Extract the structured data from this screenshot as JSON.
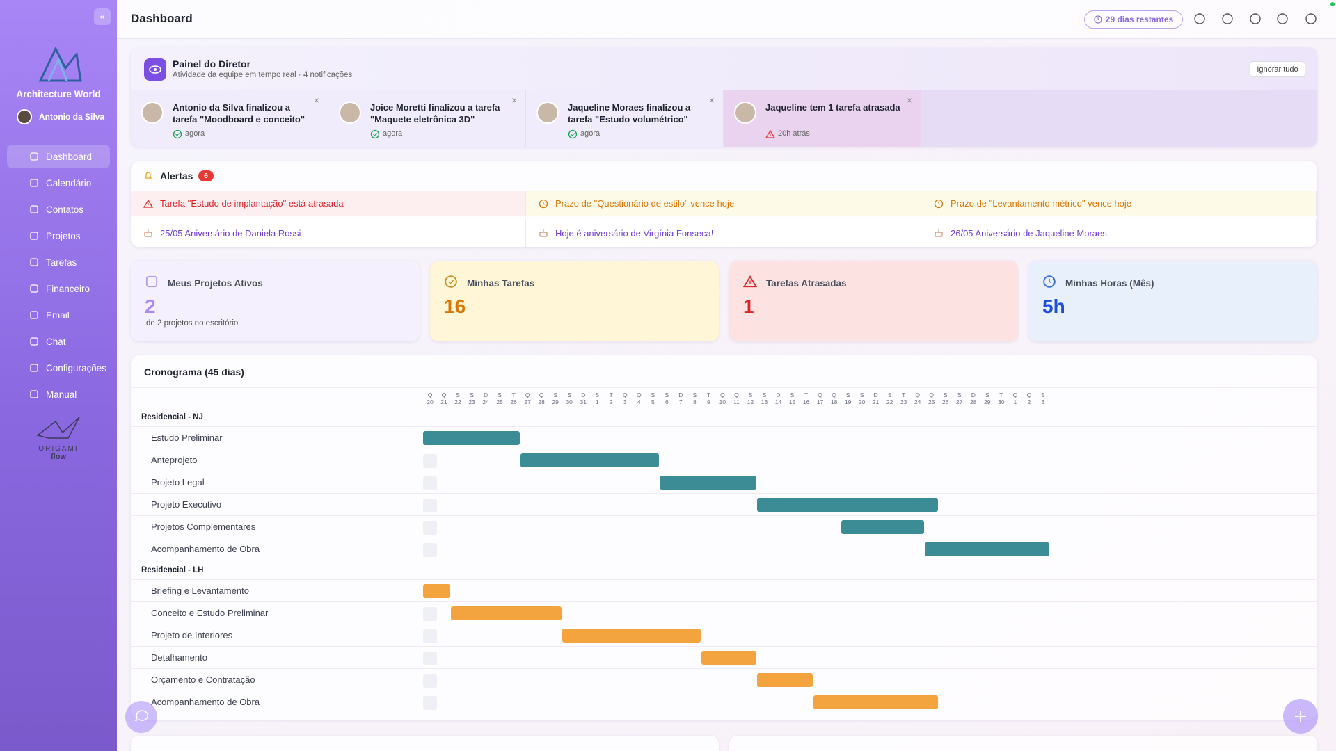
{
  "header": {
    "title": "Dashboard",
    "trial_badge": "29 dias restantes"
  },
  "sidebar": {
    "brand": "Architecture World",
    "user": "Antonio da Silva",
    "nav": [
      "Dashboard",
      "Calendário",
      "Contatos",
      "Projetos",
      "Tarefas",
      "Financeiro",
      "Email",
      "Chat",
      "Configurações",
      "Manual"
    ],
    "footer_logo": [
      "ORIGAMI",
      "flow"
    ]
  },
  "panel": {
    "title": "Painel do Diretor",
    "subtitle": "Atividade da equipe em tempo real · 4 notificações",
    "dismiss": "Ignorar tudo",
    "notifications": [
      {
        "text": "Antonio da Silva finalizou a tarefa \"Moodboard e conceito\"",
        "time": "agora"
      },
      {
        "text": "Joice Moretti finalizou a tarefa \"Maquete eletrônica 3D\"",
        "time": "agora"
      },
      {
        "text": "Jaqueline Moraes finalizou a tarefa \"Estudo volumétrico\"",
        "time": "agora"
      },
      {
        "text": "Jaqueline tem 1 tarefa atrasada",
        "time": "20h atrás"
      }
    ]
  },
  "alerts": {
    "title": "Alertas",
    "count": 6,
    "items": [
      "Tarefa \"Estudo de implantação\" está atrasada",
      "Prazo de \"Questionário de estilo\" vence hoje",
      "Prazo de \"Levantamento métrico\" vence hoje",
      "25/05 Aniversário de Daniela Rossi",
      "Hoje é aniversário de Virgínia Fonseca!",
      "26/05 Aniversário de Jaqueline Moraes"
    ]
  },
  "stats": [
    {
      "label": "Meus Projetos Ativos",
      "value": 2,
      "note": "de 2 projetos no escritório"
    },
    {
      "label": "Minhas Tarefas",
      "value": 16
    },
    {
      "label": "Tarefas Atrasadas",
      "value": 1
    },
    {
      "label": "Minhas Horas (Mês)",
      "value": "5h"
    }
  ],
  "gantt": {
    "title": "Cronograma (45 dias)",
    "weekdays": [
      "Q",
      "Q",
      "S",
      "S",
      "D",
      "S",
      "T",
      "Q",
      "Q",
      "S",
      "S",
      "D",
      "S",
      "T",
      "Q",
      "Q",
      "S",
      "S",
      "D",
      "S",
      "T",
      "Q",
      "Q",
      "S",
      "S",
      "D",
      "S",
      "T",
      "Q",
      "Q",
      "S",
      "S",
      "D",
      "S",
      "T",
      "Q",
      "Q",
      "S",
      "S",
      "D",
      "S",
      "T",
      "Q",
      "Q",
      "S"
    ],
    "dates": [
      20,
      21,
      22,
      23,
      24,
      25,
      26,
      27,
      28,
      29,
      30,
      31,
      1,
      2,
      3,
      4,
      5,
      6,
      7,
      8,
      9,
      10,
      11,
      12,
      13,
      14,
      15,
      16,
      17,
      18,
      19,
      20,
      21,
      22,
      23,
      24,
      25,
      26,
      27,
      28,
      29,
      30,
      1,
      2,
      3
    ],
    "groups": [
      {
        "name": "Residencial - NJ",
        "color": "#3b8c94",
        "tasks": [
          {
            "name": "Estudo Preliminar",
            "start": 0,
            "days": 7
          },
          {
            "name": "Anteprojeto",
            "start": 7,
            "days": 10
          },
          {
            "name": "Projeto Legal",
            "start": 17,
            "days": 7
          },
          {
            "name": "Projeto Executivo",
            "start": 24,
            "days": 13
          },
          {
            "name": "Projetos Complementares",
            "start": 30,
            "days": 6
          },
          {
            "name": "Acompanhamento de Obra",
            "start": 36,
            "days": 9
          }
        ]
      },
      {
        "name": "Residencial - LH",
        "color": "#f3a43f",
        "tasks": [
          {
            "name": "Briefing e Levantamento",
            "start": 0,
            "days": 2
          },
          {
            "name": "Conceito e Estudo Preliminar",
            "start": 2,
            "days": 8
          },
          {
            "name": "Projeto de Interiores",
            "start": 10,
            "days": 10
          },
          {
            "name": "Detalhamento",
            "start": 20,
            "days": 4
          },
          {
            "name": "Orçamento e Contratação",
            "start": 24,
            "days": 4
          },
          {
            "name": "Acompanhamento de Obra",
            "start": 28,
            "days": 9
          }
        ]
      }
    ]
  }
}
